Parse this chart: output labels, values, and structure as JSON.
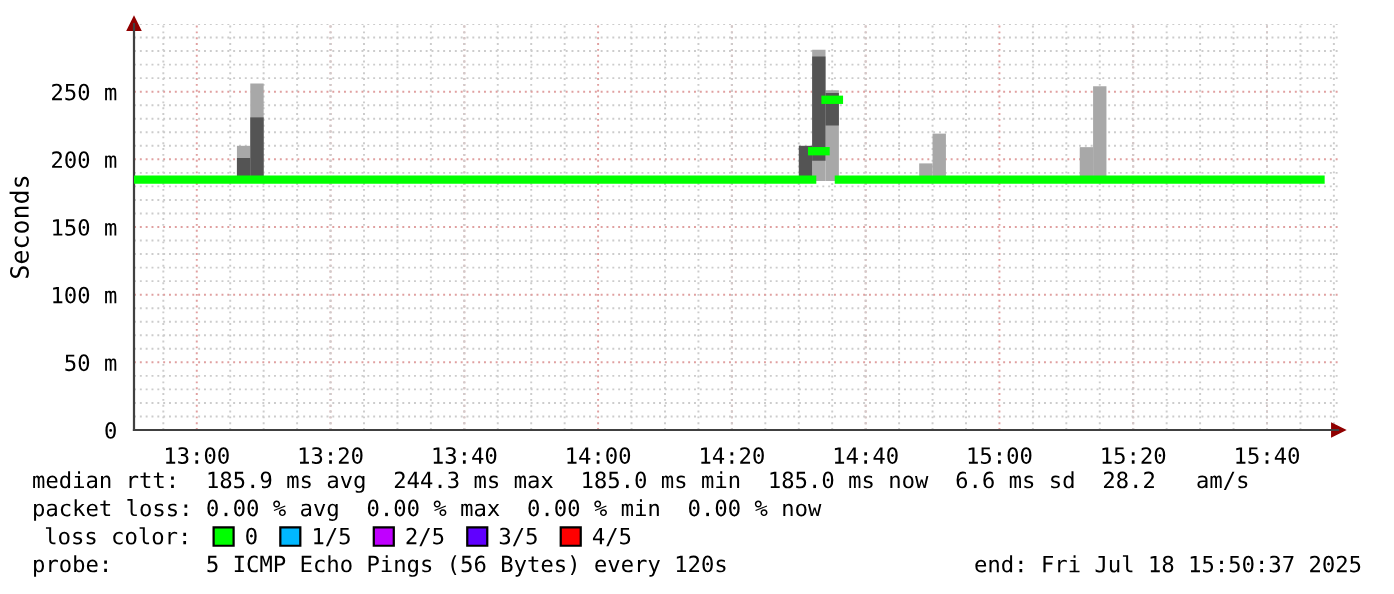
{
  "chart_data": {
    "type": "bar",
    "ylabel": "Seconds",
    "xlim": [
      12.8436,
      15.8436
    ],
    "ylim": [
      0,
      300
    ],
    "xticks": [
      {
        "value": 13,
        "label": "13:00"
      },
      {
        "value": 13.3333,
        "label": "13:20"
      },
      {
        "value": 13.6667,
        "label": "13:40"
      },
      {
        "value": 14,
        "label": "14:00"
      },
      {
        "value": 14.3333,
        "label": "14:20"
      },
      {
        "value": 14.6667,
        "label": "14:40"
      },
      {
        "value": 15,
        "label": "15:00"
      },
      {
        "value": 15.3333,
        "label": "15:20"
      },
      {
        "value": 15.6667,
        "label": "15:40"
      }
    ],
    "yticks": [
      0,
      {
        "value": 50,
        "label": "50 m"
      },
      {
        "value": 100,
        "label": "100 m"
      },
      {
        "value": 150,
        "label": "150 m"
      },
      {
        "value": 200,
        "label": "200 m"
      },
      {
        "value": 250,
        "label": "250 m"
      }
    ],
    "grid": true,
    "legend": "bottom",
    "legend_title": "loss color:",
    "series": [
      {
        "color": "#a8a8a8",
        "x": [
          13.1167,
          13.15,
          14.55,
          14.5833,
          14.8167,
          14.85,
          15.2167,
          15.25
        ],
        "base": [
          185,
          185,
          184,
          184,
          185,
          185,
          185,
          185
        ],
        "values": [
          25,
          71,
          97,
          67,
          12,
          34,
          24,
          69
        ]
      },
      {
        "color": "#545454",
        "x": [
          13.1167,
          13.15,
          14.5167,
          14.55,
          14.5833
        ],
        "base": [
          185,
          185,
          185,
          199,
          225
        ],
        "values": [
          16,
          46,
          25,
          77,
          24
        ]
      },
      {
        "type": "line",
        "name": "0",
        "color": "#00ff00",
        "x": [
          12.8436,
          14.5333
        ],
        "values": [
          185,
          185
        ]
      },
      {
        "type": "line",
        "color": "#00ff00",
        "x": [
          14.5333,
          14.5667
        ],
        "values": [
          206,
          206
        ]
      },
      {
        "type": "line",
        "color": "#00ff00",
        "x": [
          14.5667,
          14.6
        ],
        "values": [
          244,
          244
        ]
      },
      {
        "type": "line",
        "color": "#00ff00",
        "x": [
          14.6,
          15.8
        ],
        "values": [
          185,
          185
        ]
      },
      {
        "type": "line",
        "name": "1/5",
        "color": "#00b8ff"
      },
      {
        "type": "line",
        "name": "2/5",
        "color": "#c000ff"
      },
      {
        "type": "line",
        "name": "3/5",
        "color": "#6000ff"
      },
      {
        "type": "line",
        "name": "4/5",
        "color": "#ff0000"
      }
    ],
    "annotations": [
      "median rtt:  185.9 ms avg  244.3 ms max  185.0 ms min  185.0 ms now  6.6 ms sd  28.2   am/s",
      "packet loss: 0.00 % avg  0.00 % max  0.00 % min  0.00 % now",
      "probe:       5 ICMP Echo Pings (56 Bytes) every 120s",
      "end: Fri Jul 18 15:50:37 2025"
    ]
  }
}
